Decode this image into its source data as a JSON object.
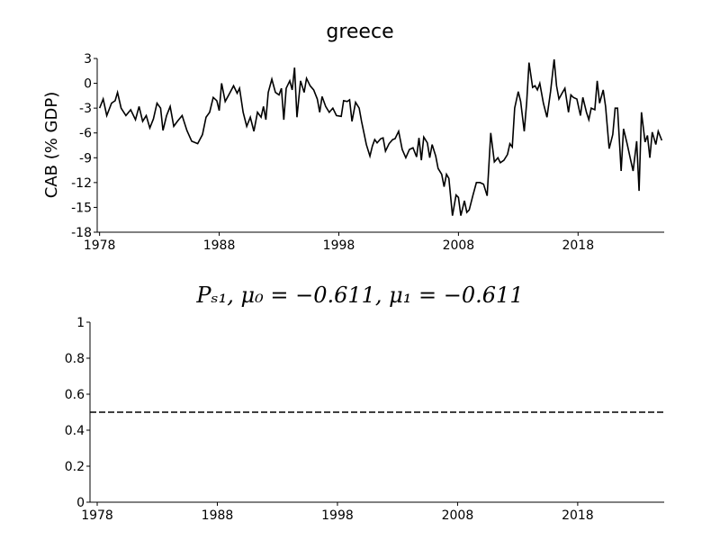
{
  "chart_data": [
    {
      "type": "line",
      "title": "greece",
      "y_label": "CAB (% GDP)",
      "color": "#000000",
      "line_style": "solid",
      "x": [
        1978.0,
        1978.3,
        1978.6,
        1979.0,
        1979.3,
        1979.5,
        1979.8,
        1980.2,
        1980.6,
        1981.0,
        1981.3,
        1981.6,
        1981.9,
        1982.2,
        1982.5,
        1982.8,
        1983.1,
        1983.3,
        1983.6,
        1983.9,
        1984.2,
        1984.5,
        1984.9,
        1985.3,
        1985.7,
        1986.2,
        1986.6,
        1986.9,
        1987.2,
        1987.5,
        1987.8,
        1988.0,
        1988.2,
        1988.5,
        1988.8,
        1989.2,
        1989.5,
        1989.7,
        1990.0,
        1990.3,
        1990.6,
        1990.9,
        1991.2,
        1991.5,
        1991.7,
        1991.9,
        1992.1,
        1992.4,
        1992.7,
        1993.0,
        1993.2,
        1993.4,
        1993.6,
        1993.9,
        1994.1,
        1994.3,
        1994.5,
        1994.8,
        1995.1,
        1995.3,
        1995.6,
        1995.9,
        1996.2,
        1996.4,
        1996.6,
        1996.9,
        1997.2,
        1997.5,
        1997.8,
        1998.2,
        1998.4,
        1998.7,
        1998.9,
        1999.1,
        1999.4,
        1999.7,
        1999.9,
        2000.1,
        2000.3,
        2000.6,
        2000.8,
        2001.0,
        2001.2,
        2001.5,
        2001.7,
        2001.9,
        2002.2,
        2002.5,
        2002.7,
        2003.0,
        2003.3,
        2003.6,
        2003.9,
        2004.2,
        2004.5,
        2004.7,
        2004.9,
        2005.1,
        2005.4,
        2005.6,
        2005.8,
        2006.1,
        2006.3,
        2006.6,
        2006.8,
        2007.0,
        2007.2,
        2007.5,
        2007.8,
        2008.0,
        2008.2,
        2008.5,
        2008.7,
        2008.9,
        2009.2,
        2009.5,
        2009.8,
        2010.1,
        2010.4,
        2010.7,
        2011.0,
        2011.3,
        2011.5,
        2011.8,
        2012.1,
        2012.3,
        2012.5,
        2012.7,
        2013.0,
        2013.2,
        2013.5,
        2013.7,
        2013.9,
        2014.2,
        2014.4,
        2014.6,
        2014.8,
        2015.1,
        2015.4,
        2015.7,
        2016.0,
        2016.2,
        2016.4,
        2016.7,
        2016.9,
        2017.2,
        2017.4,
        2017.6,
        2017.9,
        2018.2,
        2018.4,
        2018.7,
        2018.9,
        2019.1,
        2019.4,
        2019.6,
        2019.8,
        2020.1,
        2020.3,
        2020.6,
        2020.9,
        2021.1,
        2021.3,
        2021.6,
        2021.8,
        2022.1,
        2022.4,
        2022.6,
        2022.9,
        2023.1,
        2023.3,
        2023.6,
        2023.8,
        2024.0,
        2024.2,
        2024.5,
        2024.7,
        2025.0
      ],
      "values": [
        -3,
        -1.9,
        -3.9,
        -2.4,
        -2.1,
        -1.1,
        -3,
        -3.9,
        -3.2,
        -4.4,
        -2.8,
        -4.6,
        -3.9,
        -5.4,
        -4.3,
        -2.4,
        -3,
        -5.7,
        -3.9,
        -2.8,
        -5.2,
        -4.6,
        -3.9,
        -5.7,
        -7.0,
        -7.3,
        -6.2,
        -4.1,
        -3.5,
        -1.7,
        -2.1,
        -3.3,
        0,
        -2.2,
        -1.4,
        -0.3,
        -1.2,
        -0.6,
        -3.5,
        -5.2,
        -4.1,
        -5.8,
        -3.5,
        -4.1,
        -2.8,
        -4.4,
        -1.1,
        0.5,
        -1.1,
        -1.4,
        -0.6,
        -4.4,
        -0.6,
        0.3,
        -0.8,
        1.9,
        -4.1,
        0.3,
        -1.1,
        0.6,
        -0.3,
        -0.8,
        -1.9,
        -3.5,
        -1.6,
        -2.8,
        -3.5,
        -3,
        -3.9,
        -4,
        -2.1,
        -2.2,
        -2,
        -4.6,
        -2.3,
        -3,
        -4.6,
        -6.0,
        -7.4,
        -8.8,
        -7.6,
        -6.8,
        -7.2,
        -6.7,
        -6.6,
        -8.2,
        -7.3,
        -6.8,
        -6.7,
        -5.8,
        -8.0,
        -9.0,
        -8.0,
        -7.8,
        -8.9,
        -6.6,
        -9.3,
        -6.5,
        -7.2,
        -9.0,
        -7.4,
        -8.8,
        -10.3,
        -11.0,
        -12.5,
        -11.0,
        -11.5,
        -16.0,
        -13.5,
        -13.8,
        -16.0,
        -14.2,
        -15.6,
        -15.3,
        -13.6,
        -12.0,
        -12.0,
        -12.2,
        -13.6,
        -6.0,
        -9.5,
        -9.0,
        -9.6,
        -9.3,
        -8.6,
        -7.3,
        -7.7,
        -3.0,
        -1.0,
        -2.2,
        -5.8,
        -2.4,
        2.5,
        -0.5,
        -0.3,
        -0.8,
        0.0,
        -2.4,
        -4.1,
        -1.0,
        2.9,
        -0.3,
        -1.9,
        -1.1,
        -0.6,
        -3.5,
        -1.4,
        -1.7,
        -1.9,
        -3.9,
        -1.7,
        -3.5,
        -4.4,
        -3.0,
        -3.2,
        0.3,
        -2.4,
        -0.8,
        -2.8,
        -7.9,
        -6.2,
        -3.0,
        -3.0,
        -10.6,
        -5.5,
        -7.3,
        -9.3,
        -10.6,
        -7.0,
        -13.0,
        -3.5,
        -7.1,
        -6.3,
        -9.0,
        -5.9,
        -7.4,
        -5.8,
        -6.9
      ],
      "xlim": [
        1977.8,
        2025.2
      ],
      "ylim": [
        -18,
        3
      ],
      "xticks": [
        1978,
        1988,
        1998,
        2008,
        2018
      ],
      "yticks": [
        3,
        0,
        -3,
        -6,
        -9,
        -12,
        -15,
        -18
      ]
    },
    {
      "type": "line",
      "title": "Pₛ₁, μ₀ = −0.611, μ₁ = −0.611",
      "color": "#000000",
      "line_style": "dashed",
      "x": [
        1977.4,
        2025.2
      ],
      "values": [
        0.5,
        0.5
      ],
      "xlim": [
        1977.4,
        2025.2
      ],
      "ylim": [
        0,
        1
      ],
      "xticks": [
        1978,
        1988,
        1998,
        2008,
        2018
      ],
      "yticks": [
        0,
        0.2,
        0.4,
        0.6,
        0.8,
        1
      ]
    }
  ]
}
